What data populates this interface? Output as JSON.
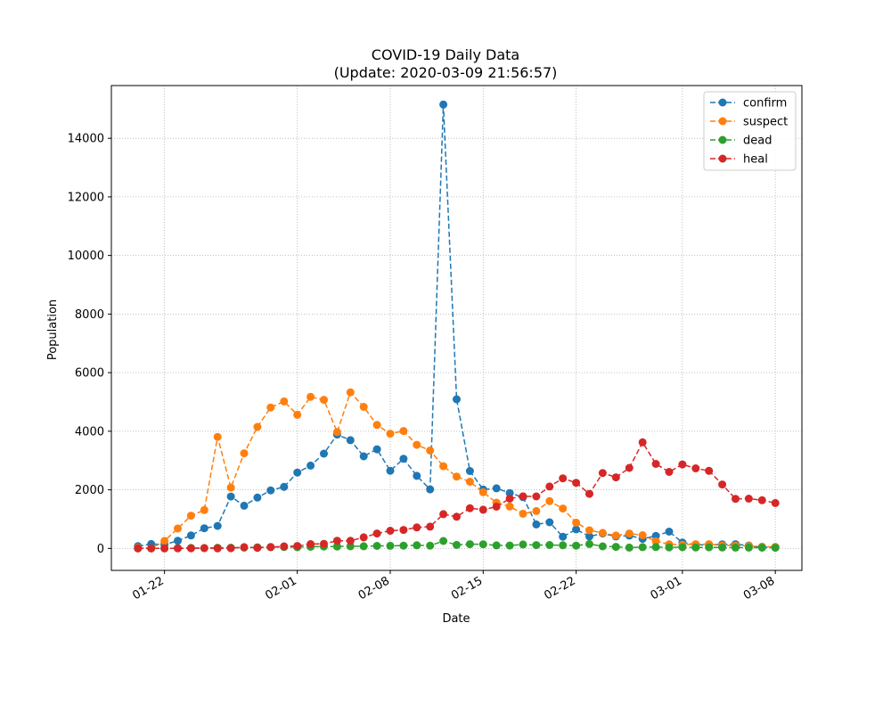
{
  "chart_data": {
    "type": "line",
    "title": "COVID-19 Daily Data",
    "subtitle": "(Update: 2020-03-09 21:56:57)",
    "xlabel": "Date",
    "ylabel": "Population",
    "x_start": "2020-01-20",
    "xlim": [
      "2020-01-18",
      "2020-03-10"
    ],
    "ylim": [
      -750,
      15800
    ],
    "x_ticks": [
      "01-22",
      "02-01",
      "02-08",
      "02-15",
      "02-22",
      "03-01",
      "03-08"
    ],
    "x_tick_dates": [
      "2020-01-22",
      "2020-02-01",
      "2020-02-08",
      "2020-02-15",
      "2020-02-22",
      "2020-03-01",
      "2020-03-08"
    ],
    "y_ticks": [
      0,
      2000,
      4000,
      6000,
      8000,
      10000,
      12000,
      14000
    ],
    "grid": true,
    "legend_position": "top-right",
    "series": [
      {
        "name": "confirm",
        "color": "#1f77b4",
        "values": [
          77,
          149,
          131,
          259,
          444,
          688,
          769,
          1771,
          1459,
          1737,
          1982,
          2102,
          2590,
          2829,
          3235,
          3887,
          3694,
          3143,
          3385,
          2652,
          3062,
          2478,
          2015,
          15152,
          5090,
          2641,
          2009,
          2051,
          1890,
          1750,
          820,
          892,
          399,
          650,
          409,
          508,
          409,
          439,
          327,
          427,
          573,
          202,
          125,
          119,
          139,
          143,
          99,
          44,
          40
        ]
      },
      {
        "name": "suspect",
        "color": "#ff7f0e",
        "values": [
          27,
          1,
          257,
          680,
          1118,
          1309,
          3806,
          2077,
          3248,
          4148,
          4812,
          5019,
          4562,
          5173,
          5072,
          3971,
          5328,
          4833,
          4214,
          3916,
          4008,
          3536,
          3342,
          2807,
          2450,
          2277,
          1918,
          1563,
          1432,
          1185,
          1277,
          1614,
          1361,
          882,
          620,
          530,
          439,
          508,
          452,
          248,
          141,
          127,
          143,
          143,
          102,
          99,
          84,
          60,
          52
        ]
      },
      {
        "name": "dead",
        "color": "#2ca02c",
        "values": [
          0,
          3,
          0,
          8,
          16,
          15,
          24,
          26,
          26,
          38,
          43,
          46,
          45,
          57,
          64,
          65,
          73,
          73,
          86,
          89,
          97,
          108,
          97,
          254,
          121,
          143,
          142,
          105,
          98,
          136,
          114,
          118,
          109,
          97,
          150,
          71,
          52,
          29,
          44,
          47,
          35,
          42,
          31,
          38,
          31,
          30,
          28,
          27,
          22
        ]
      },
      {
        "name": "heal",
        "color": "#d62728",
        "values": [
          0,
          0,
          0,
          6,
          3,
          11,
          2,
          9,
          43,
          21,
          47,
          72,
          85,
          147,
          157,
          262,
          261,
          378,
          510,
          605,
          632,
          716,
          744,
          1171,
          1081,
          1373,
          1323,
          1425,
          1701,
          1779,
          1775,
          2113,
          2393,
          2242,
          1864,
          2575,
          2425,
          2750,
          3622,
          2885,
          2613,
          2866,
          2734,
          2647,
          2183,
          1694,
          1699,
          1643,
          1549
        ]
      }
    ]
  }
}
